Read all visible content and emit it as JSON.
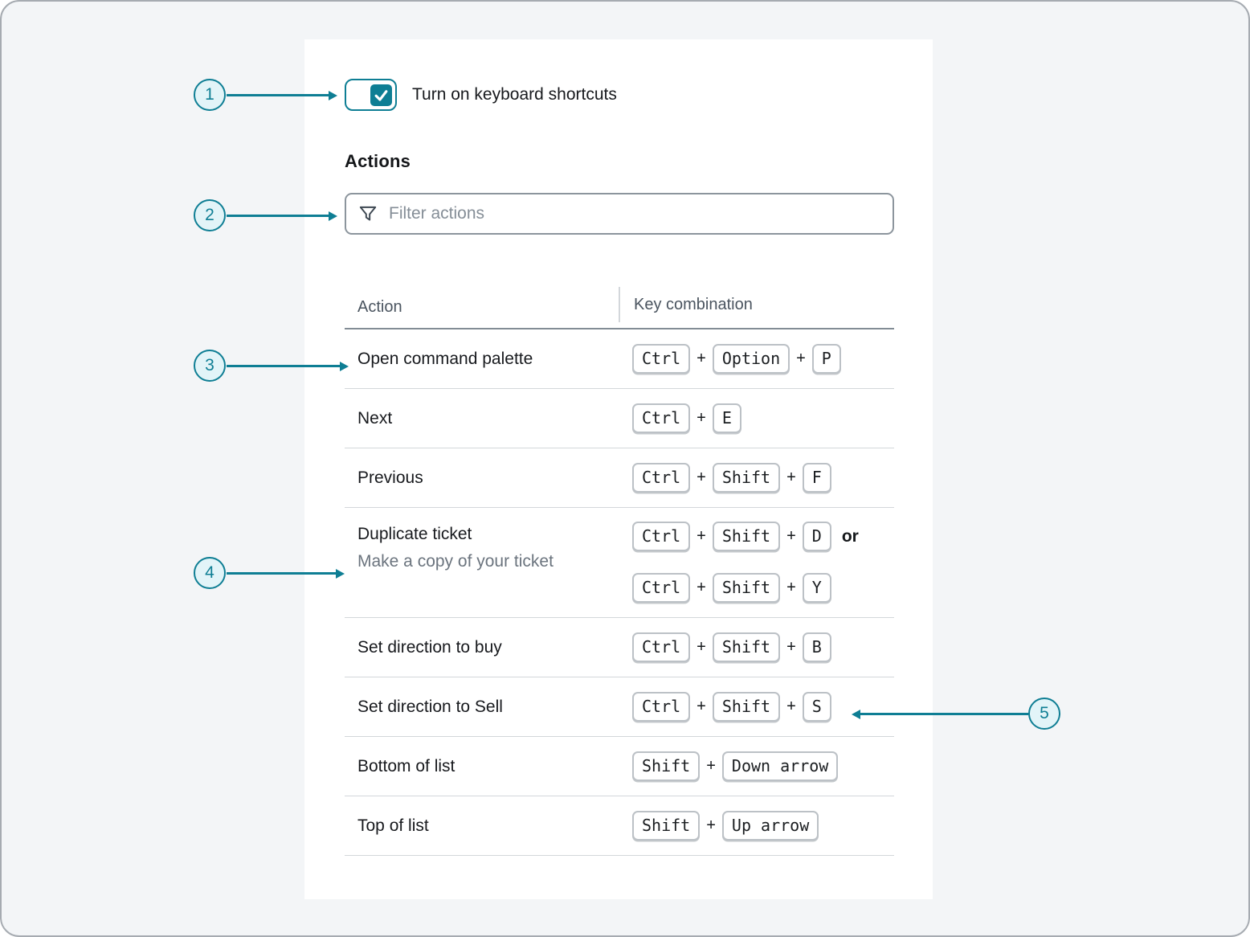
{
  "colors": {
    "accent_teal": "#0e7e94",
    "callout_fill": "#e2f4f8",
    "page_background": "#f3f5f7",
    "panel_background": "#ffffff",
    "text_dark": "#17191d",
    "text_gray": "#6b747e",
    "header_text": "#4a545f",
    "keycap_border": "#bcc1c6",
    "row_divider": "#d3d7da"
  },
  "toggle": {
    "label": "Turn on keyboard shortcuts",
    "checked": true
  },
  "headings": {
    "actions": "Actions"
  },
  "filter": {
    "placeholder": "Filter actions",
    "value": "",
    "icon": "filter-funnel-icon"
  },
  "icons": {
    "filter-funnel-icon": "funnel outline",
    "checkmark-icon": "white check mark in teal square"
  },
  "table": {
    "columns": [
      "Action",
      "Key combination"
    ],
    "rows": [
      {
        "action": "Open command palette",
        "combos": [
          [
            "Ctrl",
            "Option",
            "P"
          ]
        ]
      },
      {
        "action": "Next",
        "combos": [
          [
            "Ctrl",
            "E"
          ]
        ]
      },
      {
        "action": "Previous",
        "combos": [
          [
            "Ctrl",
            "Shift",
            "F"
          ]
        ]
      },
      {
        "action": "Duplicate ticket",
        "description": "Make a copy of your ticket",
        "combos": [
          [
            "Ctrl",
            "Shift",
            "D"
          ],
          [
            "Ctrl",
            "Shift",
            "Y"
          ]
        ],
        "join": "or"
      },
      {
        "action": "Set direction to buy",
        "combos": [
          [
            "Ctrl",
            "Shift",
            "B"
          ]
        ]
      },
      {
        "action": "Set direction to Sell",
        "combos": [
          [
            "Ctrl",
            "Shift",
            "S"
          ]
        ]
      },
      {
        "action": "Bottom of list",
        "combos": [
          [
            "Shift",
            "Down arrow"
          ]
        ]
      },
      {
        "action": "Top of list",
        "combos": [
          [
            "Shift",
            "Up arrow"
          ]
        ]
      }
    ]
  },
  "callouts": [
    {
      "number": "1",
      "target": "keyboard-shortcuts-toggle",
      "side": "left"
    },
    {
      "number": "2",
      "target": "filter-actions-input",
      "side": "left"
    },
    {
      "number": "3",
      "target": "action-open-command-palette",
      "side": "left"
    },
    {
      "number": "4",
      "target": "action-description-duplicate-ticket",
      "side": "left"
    },
    {
      "number": "5",
      "target": "key-combination-set-direction-to-sell",
      "side": "right"
    }
  ]
}
